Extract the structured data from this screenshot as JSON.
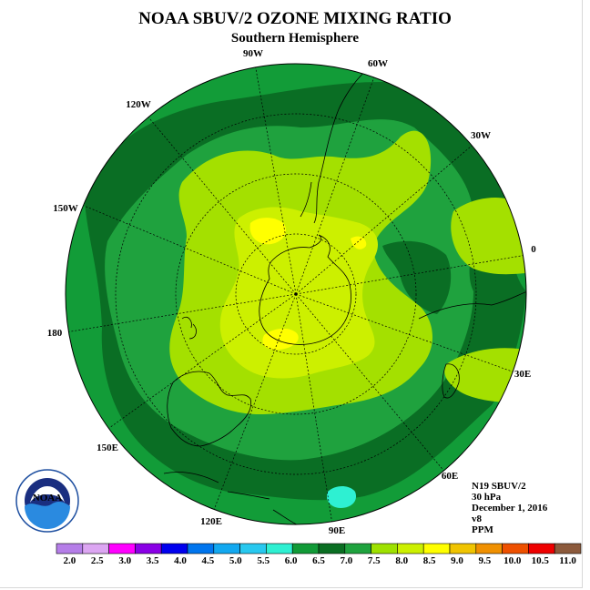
{
  "title": "NOAA SBUV/2 OZONE MIXING RATIO",
  "subtitle": "Southern Hemisphere",
  "longitude_labels": [
    "90W",
    "60W",
    "30W",
    "0",
    "30E",
    "60E",
    "90E",
    "120E",
    "150E",
    "180",
    "150W",
    "120W"
  ],
  "info": {
    "satellite": "N19 SBUV/2",
    "pressure": "30 hPa",
    "date": "December 1, 2016",
    "version": "v8",
    "units": "PPM"
  },
  "logo": {
    "text": "NOAA",
    "ring_text": "NATIONAL OCEANIC AND ATMOSPHERIC ADMINISTRATION · U.S. DEPARTMENT OF COMMERCE"
  },
  "colorbar": {
    "ticks": [
      "2.0",
      "2.5",
      "3.0",
      "3.5",
      "4.0",
      "4.5",
      "5.0",
      "5.5",
      "6.0",
      "6.5",
      "7.0",
      "7.5",
      "8.0",
      "8.5",
      "9.0",
      "9.5",
      "10.0",
      "10.5",
      "11.0"
    ],
    "colors": [
      "#b57ee8",
      "#dca6f2",
      "#ff00ff",
      "#8a00e6",
      "#0000ee",
      "#0075ee",
      "#12a8f0",
      "#28c8ef",
      "#2ef0d2",
      "#119a37",
      "#0a6e22",
      "#1fa23e",
      "#9ee100",
      "#ccf000",
      "#ffff00",
      "#f0c400",
      "#f09000",
      "#ee5000",
      "#ee0000",
      "#8c5a3c"
    ]
  },
  "level_colors": {
    "6.0-6.5": "#129c38",
    "6.5-7.0": "#0a6e24",
    "7.0-7.5": "#1fa23e",
    "7.5-8.0": "#a4e000",
    "8.0-8.5": "#ccf000",
    "8.5-9.0": "#ffff00",
    "5.5-6.0": "#2ef0d2"
  }
}
